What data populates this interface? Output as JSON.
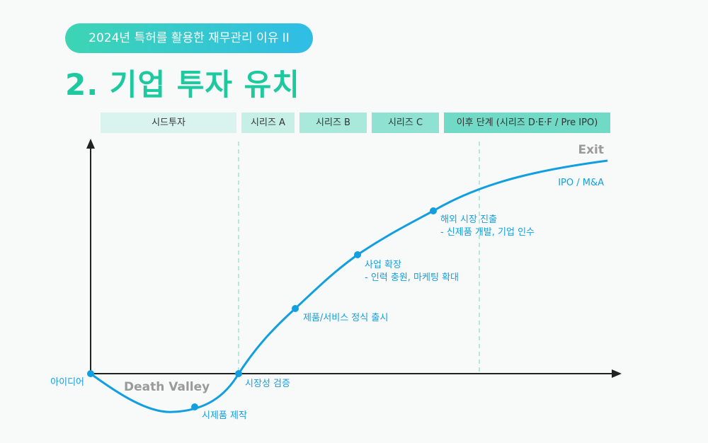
{
  "header": {
    "badge": "2024년 특허를 활용한 재무관리 이유 II",
    "title": "2. 기업 투자 유치"
  },
  "stages": [
    {
      "label": "시드투자",
      "color": "#d9f4ef"
    },
    {
      "label": "시리즈 A",
      "color": "#c6f0e6"
    },
    {
      "label": "시리즈 B",
      "color": "#a9e9dc"
    },
    {
      "label": "시리즈 C",
      "color": "#8fe2d2"
    },
    {
      "label": "이후 단계 (시리즈 D·E·F / Pre IPO)",
      "color": "#70dac6"
    }
  ],
  "diagram": {
    "exit_label": "Exit",
    "ipo_label": "IPO / M&A",
    "death_valley_label": "Death Valley",
    "curve_color": "#129fe0",
    "points": [
      {
        "label": "아이디어",
        "lines": []
      },
      {
        "label": "시제품 제작",
        "lines": []
      },
      {
        "label": "시장성 검증",
        "lines": []
      },
      {
        "label": "제품/서비스 정식 출시",
        "lines": []
      },
      {
        "label": "사업 확장",
        "lines": [
          "- 인력 충원, 마케팅 확대"
        ]
      },
      {
        "label": "해외 시장 진출",
        "lines": [
          "- 신제품 개발, 기업 인수"
        ]
      }
    ]
  }
}
